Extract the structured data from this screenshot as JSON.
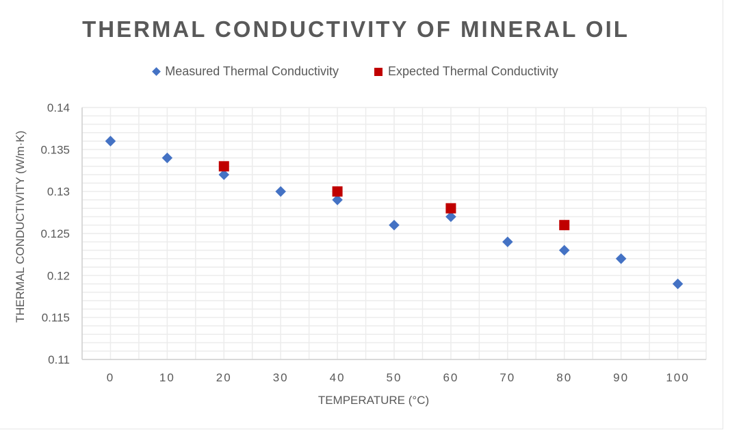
{
  "chart_data": {
    "type": "scatter",
    "title": "THERMAL CONDUCTIVITY OF MINERAL OIL",
    "xlabel": "TEMPERATURE (°C)",
    "ylabel": "THERMAL CONDUCTIVITY (W/m·K)",
    "xlim": [
      -5,
      105
    ],
    "ylim": [
      0.11,
      0.14
    ],
    "xticks": [
      0,
      10,
      20,
      30,
      40,
      50,
      60,
      70,
      80,
      90,
      100
    ],
    "yticks": [
      "0.11",
      "0.115",
      "0.12",
      "0.125",
      "0.13",
      "0.135",
      "0.14"
    ],
    "grid": true,
    "legend_position": "top",
    "series": [
      {
        "name": "Measured Thermal Conductivity",
        "marker": "diamond",
        "color": "#4472c4",
        "x": [
          0,
          10,
          20,
          30,
          40,
          50,
          60,
          70,
          80,
          90,
          100
        ],
        "y": [
          0.136,
          0.134,
          0.132,
          0.13,
          0.129,
          0.126,
          0.127,
          0.124,
          0.123,
          0.122,
          0.119
        ]
      },
      {
        "name": "Expected Thermal Conductivity",
        "marker": "square",
        "color": "#c00000",
        "x": [
          20,
          40,
          60,
          80
        ],
        "y": [
          0.133,
          0.13,
          0.128,
          0.126
        ]
      }
    ]
  }
}
